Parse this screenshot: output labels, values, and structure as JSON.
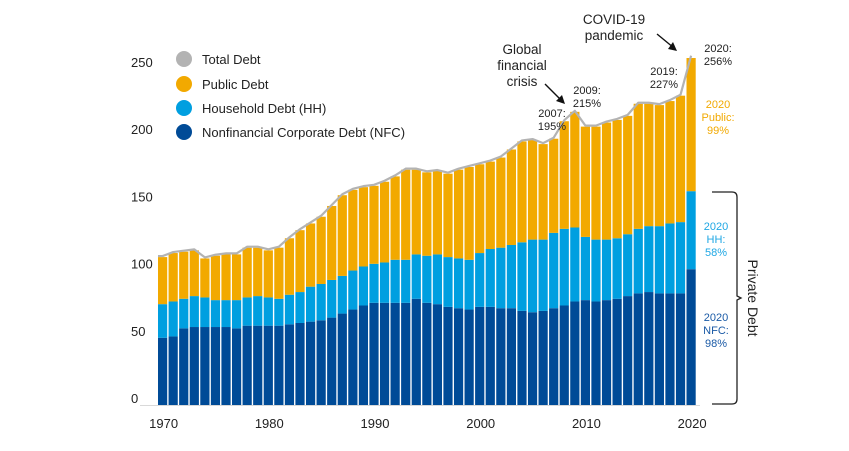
{
  "chart_data": {
    "type": "bar",
    "stacked": true,
    "title": "",
    "xlabel": "",
    "ylabel": "",
    "ylim": [
      0,
      256
    ],
    "yticks": [
      0,
      50,
      100,
      150,
      200,
      250
    ],
    "xticks": [
      1970,
      1980,
      1990,
      2000,
      2010,
      2020
    ],
    "grid": false,
    "legend_position": "top-left",
    "categories": [
      1970,
      1971,
      1972,
      1973,
      1974,
      1975,
      1976,
      1977,
      1978,
      1979,
      1980,
      1981,
      1982,
      1983,
      1984,
      1985,
      1986,
      1987,
      1988,
      1989,
      1990,
      1991,
      1992,
      1993,
      1994,
      1995,
      1996,
      1997,
      1998,
      1999,
      2000,
      2001,
      2002,
      2003,
      2004,
      2005,
      2006,
      2007,
      2008,
      2009,
      2010,
      2011,
      2012,
      2013,
      2014,
      2015,
      2016,
      2017,
      2018,
      2019,
      2020
    ],
    "series": [
      {
        "name": "Nonfinancial Corporate Debt (NFC)",
        "key": "nfc",
        "color": "#004b97",
        "values": [
          47,
          48,
          54,
          55,
          55,
          55,
          55,
          54,
          56,
          56,
          56,
          56,
          57,
          58,
          59,
          60,
          62,
          65,
          68,
          71,
          73,
          73,
          73,
          73,
          76,
          73,
          72,
          70,
          69,
          68,
          70,
          70,
          69,
          69,
          67,
          66,
          67,
          69,
          71,
          74,
          75,
          74,
          75,
          76,
          78,
          80,
          81,
          80,
          80,
          80,
          98
        ]
      },
      {
        "name": "Household Debt (HH)",
        "key": "hh",
        "color": "#009fe0",
        "values": [
          25,
          26,
          22,
          23,
          22,
          20,
          20,
          21,
          21,
          22,
          21,
          20,
          22,
          23,
          26,
          27,
          28,
          28,
          29,
          29,
          29,
          30,
          32,
          32,
          33,
          35,
          37,
          37,
          37,
          37,
          40,
          43,
          45,
          47,
          51,
          54,
          53,
          56,
          57,
          55,
          47,
          46,
          45,
          45,
          46,
          48,
          49,
          50,
          52,
          53,
          58
        ]
      },
      {
        "name": "Public Debt",
        "key": "public",
        "color": "#f2a900",
        "values": [
          35,
          36,
          35,
          34,
          29,
          33,
          34,
          34,
          37,
          36,
          35,
          38,
          42,
          46,
          47,
          50,
          55,
          60,
          60,
          59,
          58,
          60,
          62,
          67,
          63,
          62,
          62,
          62,
          66,
          69,
          66,
          65,
          67,
          71,
          75,
          74,
          71,
          70,
          80,
          86,
          82,
          84,
          87,
          88,
          88,
          93,
          91,
          90,
          91,
          94,
          99
        ]
      },
      {
        "name": "Total Debt",
        "key": "total",
        "color": "#b3b3b3",
        "values": [
          107,
          110,
          111,
          112,
          106,
          108,
          109,
          109,
          114,
          114,
          112,
          114,
          121,
          127,
          132,
          137,
          145,
          153,
          157,
          159,
          160,
          163,
          167,
          172,
          172,
          170,
          171,
          169,
          172,
          174,
          176,
          178,
          181,
          187,
          193,
          194,
          191,
          195,
          208,
          215,
          204,
          204,
          207,
          209,
          212,
          221,
          221,
          220,
          223,
          227,
          256
        ]
      }
    ],
    "annotations": [
      {
        "text": "2007:\n195%",
        "year": 2007
      },
      {
        "text": "2009:\n215%",
        "year": 2009
      },
      {
        "text": "2019:\n227%",
        "year": 2019
      },
      {
        "text": "2020:\n256%",
        "year": 2020
      },
      {
        "text": "Global\nfinancial\ncrisis",
        "year": 2008,
        "arrow": true
      },
      {
        "text": "COVID-19\npandemic",
        "year": 2020,
        "arrow": true
      },
      {
        "text": "2020\nPublic:\n99%",
        "year": 2020,
        "series": "public"
      },
      {
        "text": "2020\nHH:\n58%",
        "year": 2020,
        "series": "hh"
      },
      {
        "text": "2020\nNFC:\n98%",
        "year": 2020,
        "series": "nfc"
      }
    ],
    "bracket_label": "Private Debt"
  },
  "legend": {
    "items": [
      {
        "label": "Total Debt",
        "color": "#b3b3b3"
      },
      {
        "label": "Public Debt",
        "color": "#f2a900"
      },
      {
        "label": "Household Debt (HH)",
        "color": "#009fe0"
      },
      {
        "label": "Nonfinancial Corporate Debt (NFC)",
        "color": "#004b97"
      }
    ]
  },
  "labels": {
    "gfc": [
      "Global",
      "financial",
      "crisis"
    ],
    "covid": [
      "COVID-19",
      "pandemic"
    ],
    "y2007": [
      "2007:",
      "195%"
    ],
    "y2009": [
      "2009:",
      "215%"
    ],
    "y2019": [
      "2019:",
      "227%"
    ],
    "y2020": [
      "2020:",
      "256%"
    ],
    "public2020": [
      "2020",
      "Public:",
      "99%"
    ],
    "hh2020": [
      "2020",
      "HH:",
      "58%"
    ],
    "nfc2020": [
      "2020",
      "NFC:",
      "98%"
    ],
    "private": "Private Debt"
  }
}
